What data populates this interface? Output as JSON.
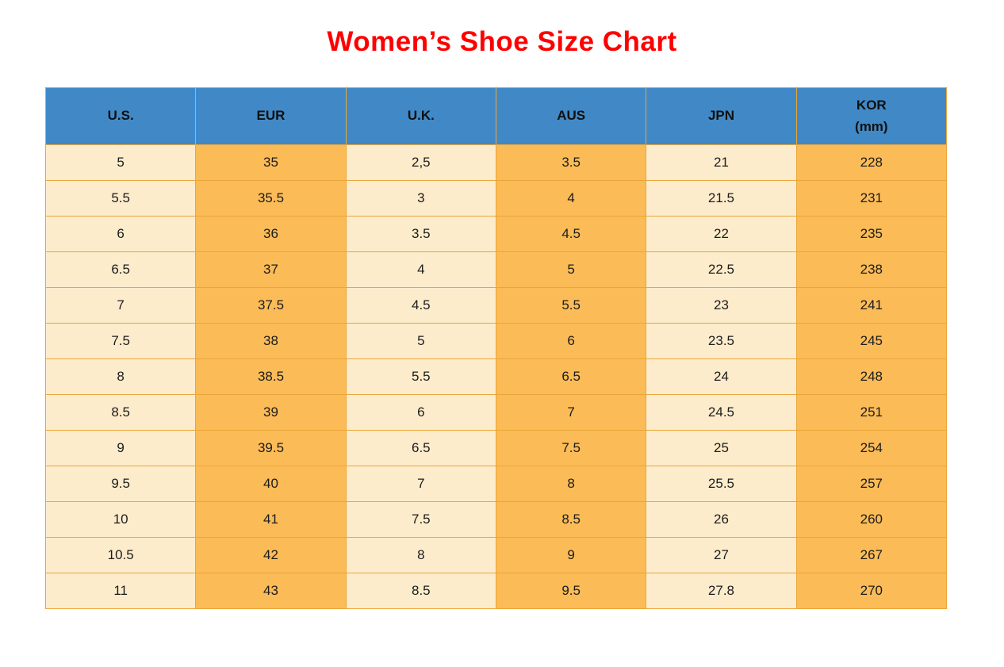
{
  "title": {
    "text": "Women’s Shoe Size Chart",
    "color": "#ff0000"
  },
  "colors": {
    "page_bg": "#ffffff",
    "header_bg": "#4189c6",
    "header_text": "#101010",
    "col_cream_bg": "#fdeccb",
    "col_orange_bg": "#fbbb57",
    "grid_border": "#e9a63a",
    "cell_text": "#1c1c1c"
  },
  "chart_data": {
    "type": "table",
    "title": "Women’s Shoe Size Chart",
    "columns": [
      "U.S.",
      "EUR",
      "U.K.",
      "AUS",
      "JPN",
      "KOR (mm)"
    ],
    "header_lines": [
      [
        "U.S."
      ],
      [
        "EUR"
      ],
      [
        "U.K."
      ],
      [
        "AUS"
      ],
      [
        "JPN"
      ],
      [
        "KOR",
        "(mm)"
      ]
    ],
    "rows": [
      [
        "5",
        "35",
        "2,5",
        "3.5",
        "21",
        "228"
      ],
      [
        "5.5",
        "35.5",
        "3",
        "4",
        "21.5",
        "231"
      ],
      [
        "6",
        "36",
        "3.5",
        "4.5",
        "22",
        "235"
      ],
      [
        "6.5",
        "37",
        "4",
        "5",
        "22.5",
        "238"
      ],
      [
        "7",
        "37.5",
        "4.5",
        "5.5",
        "23",
        "241"
      ],
      [
        "7.5",
        "38",
        "5",
        "6",
        "23.5",
        "245"
      ],
      [
        "8",
        "38.5",
        "5.5",
        "6.5",
        "24",
        "248"
      ],
      [
        "8.5",
        "39",
        "6",
        "7",
        "24.5",
        "251"
      ],
      [
        "9",
        "39.5",
        "6.5",
        "7.5",
        "25",
        "254"
      ],
      [
        "9.5",
        "40",
        "7",
        "8",
        "25.5",
        "257"
      ],
      [
        "10",
        "41",
        "7.5",
        "8.5",
        "26",
        "260"
      ],
      [
        "10.5",
        "42",
        "8",
        "9",
        "27",
        "267"
      ],
      [
        "11",
        "43",
        "8.5",
        "9.5",
        "27.8",
        "270"
      ]
    ],
    "column_styles": [
      "cream",
      "orange",
      "cream",
      "orange",
      "cream",
      "orange"
    ],
    "layout": {
      "grid": true,
      "header_position": "top",
      "legend": "none"
    }
  }
}
